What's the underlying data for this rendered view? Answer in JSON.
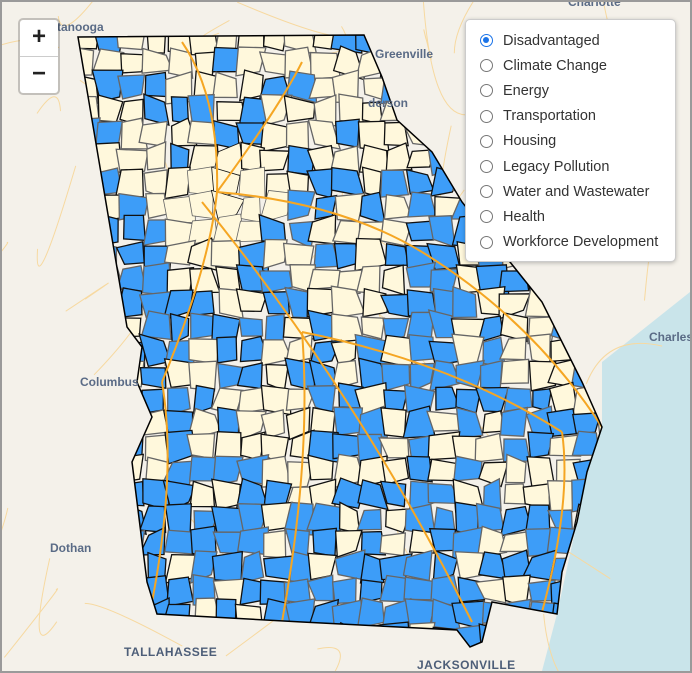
{
  "map": {
    "zoom_in_label": "+",
    "zoom_out_label": "−",
    "fill_selected": "#3d9df8",
    "fill_unselected": "#fff8dc",
    "road_color": "#f5a623",
    "water_color": "#c9e4ea",
    "city_labels": [
      "tanooga",
      "Greenville",
      "derson",
      "Charlotte",
      "Charles",
      "Columbus",
      "Dothan",
      "TALLAHASSEE",
      "JACKSONVILLE"
    ]
  },
  "legend": {
    "selected": "Disadvantaged",
    "options": [
      "Disadvantaged",
      "Climate Change",
      "Energy",
      "Transportation",
      "Housing",
      "Legacy Pollution",
      "Water and Wastewater",
      "Health",
      "Workforce Development"
    ]
  }
}
